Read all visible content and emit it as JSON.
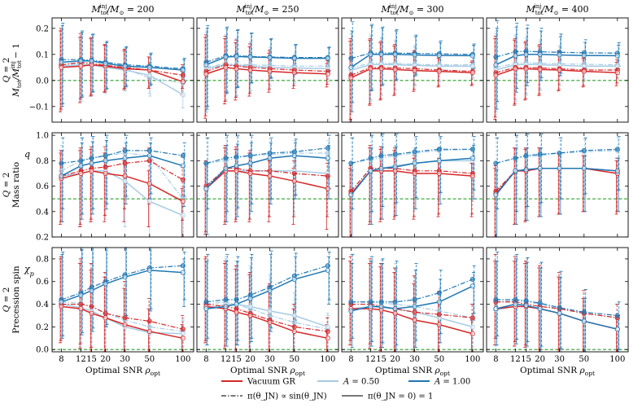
{
  "chart_data": {
    "type": "line",
    "x_values": [
      8,
      12,
      15,
      20,
      30,
      50,
      100
    ],
    "x_ticks": [
      "8",
      "12",
      "15",
      "20",
      "30",
      "50",
      "100"
    ],
    "xlabel": "Optimal SNR ρ_opt",
    "columns": [
      {
        "title": "M_tot^inj / M_⊙ = 200",
        "mass": 200
      },
      {
        "title": "M_tot^inj / M_⊙ = 250",
        "mass": 250
      },
      {
        "title": "M_tot^inj / M_⊙ = 300",
        "mass": 300
      },
      {
        "title": "M_tot^inj / M_⊙ = 400",
        "mass": 400
      }
    ],
    "rows": [
      {
        "key": "mass_bias",
        "ylabel_line1": "Q = 2",
        "ylabel_line2": "M_tot / M_tot^inj − 1",
        "ylim": [
          -0.16,
          0.24
        ],
        "yticks": [
          -0.1,
          0.0,
          0.1,
          0.2
        ],
        "ytick_labels": [
          "−0.1",
          "0.0",
          "0.1",
          "0.2"
        ],
        "reference": 0.0
      },
      {
        "key": "mass_ratio",
        "ylabel_line1": "Q = 2",
        "ylabel_line2": "Mass ratio",
        "inline_label": "q",
        "ylim": [
          0.2,
          1.02
        ],
        "yticks": [
          0.2,
          0.4,
          0.6,
          0.8,
          1.0
        ],
        "ytick_labels": [
          "0.2",
          "0.4",
          "0.6",
          "0.8",
          "1.0"
        ],
        "reference": 0.5
      },
      {
        "key": "precession_spin",
        "ylabel_line1": "Q = 2",
        "ylabel_line2": "Precession spin",
        "inline_label": "χ_p",
        "ylim": [
          -0.02,
          0.9
        ],
        "yticks": [
          0.0,
          0.2,
          0.4,
          0.6,
          0.8
        ],
        "ytick_labels": [
          "0.0",
          "0.2",
          "0.4",
          "0.6",
          "0.8"
        ],
        "reference": 0.0
      }
    ],
    "series_styles": [
      {
        "key": "vac",
        "label": "Vacuum GR",
        "color": "#d62728"
      },
      {
        "key": "a05",
        "label": "A = 0.50",
        "color": "#a6cbe3"
      },
      {
        "key": "a1",
        "label": "A = 1.00",
        "color": "#1f77b4"
      }
    ],
    "prior_styles": [
      {
        "key": "sin",
        "label": "π(θ_JN) ∝ sin(θ_JN)",
        "dash": "dashdot"
      },
      {
        "key": "fix",
        "label": "π(θ_JN = 0) = 1",
        "dash": "solid"
      }
    ],
    "reference_color": "#2ca02c",
    "data": [
      [
        {
          "vac_fix": [
            0.05,
            0.055,
            0.06,
            0.055,
            0.045,
            0.04,
            -0.005
          ],
          "vac_sin": [
            0.06,
            0.07,
            0.065,
            0.058,
            0.05,
            0.04,
            0.02
          ],
          "a05_fix": [
            0.055,
            0.06,
            0.06,
            0.05,
            0.04,
            0.02,
            -0.055
          ],
          "a05_sin": [
            0.06,
            0.065,
            0.062,
            0.055,
            0.045,
            0.01,
            -0.01
          ],
          "a1_fix": [
            0.07,
            0.075,
            0.075,
            0.065,
            0.055,
            0.05,
            0.04
          ],
          "a1_sin": [
            0.08,
            0.08,
            0.078,
            0.07,
            0.06,
            0.055,
            0.045
          ],
          "err_low": [
            0.17,
            0.14,
            0.12,
            0.1,
            0.08,
            0.07,
            0.05
          ],
          "err_high": [
            0.14,
            0.11,
            0.1,
            0.08,
            0.07,
            0.05,
            0.04
          ]
        },
        {
          "vac_fix": [
            0.025,
            0.05,
            0.045,
            0.04,
            0.035,
            0.03,
            0.025
          ],
          "vac_sin": [
            0.035,
            0.06,
            0.055,
            0.05,
            0.045,
            0.04,
            0.035
          ],
          "a05_fix": [
            0.045,
            0.06,
            0.058,
            0.055,
            0.05,
            0.048,
            0.045
          ],
          "a05_sin": [
            0.05,
            0.065,
            0.062,
            0.06,
            0.058,
            0.055,
            0.055
          ],
          "a1_fix": [
            0.06,
            0.09,
            0.092,
            0.09,
            0.088,
            0.085,
            0.085
          ],
          "a1_sin": [
            0.07,
            0.095,
            0.095,
            0.092,
            0.09,
            0.088,
            0.088
          ],
          "err_low": [
            0.17,
            0.14,
            0.12,
            0.1,
            0.08,
            0.06,
            0.05
          ],
          "err_high": [
            0.14,
            0.11,
            0.1,
            0.09,
            0.07,
            0.05,
            0.04
          ]
        },
        {
          "vac_fix": [
            0.01,
            0.045,
            0.045,
            0.042,
            0.038,
            0.035,
            0.03
          ],
          "vac_sin": [
            0.02,
            0.05,
            0.05,
            0.048,
            0.045,
            0.04,
            0.035
          ],
          "a05_fix": [
            0.04,
            0.06,
            0.062,
            0.06,
            0.058,
            0.055,
            0.055
          ],
          "a05_sin": [
            0.05,
            0.065,
            0.066,
            0.065,
            0.062,
            0.06,
            0.06
          ],
          "a1_fix": [
            0.05,
            0.1,
            0.1,
            0.1,
            0.098,
            0.096,
            0.095
          ],
          "a1_sin": [
            0.085,
            0.105,
            0.105,
            0.105,
            0.104,
            0.102,
            0.1
          ],
          "err_low": [
            0.17,
            0.14,
            0.12,
            0.1,
            0.08,
            0.06,
            0.05
          ],
          "err_high": [
            0.14,
            0.11,
            0.1,
            0.09,
            0.07,
            0.05,
            0.04
          ]
        },
        {
          "vac_fix": [
            0.02,
            0.045,
            0.045,
            0.042,
            0.04,
            0.035,
            0.03
          ],
          "vac_sin": [
            0.03,
            0.05,
            0.05,
            0.048,
            0.045,
            0.04,
            0.04
          ],
          "a05_fix": [
            0.04,
            0.06,
            0.062,
            0.06,
            0.058,
            0.055,
            0.055
          ],
          "a05_sin": [
            0.05,
            0.065,
            0.068,
            0.066,
            0.064,
            0.062,
            0.06
          ],
          "a1_fix": [
            0.06,
            0.095,
            0.1,
            0.1,
            0.098,
            0.096,
            0.095
          ],
          "a1_sin": [
            0.09,
            0.11,
            0.112,
            0.11,
            0.108,
            0.106,
            0.105
          ],
          "err_low": [
            0.17,
            0.14,
            0.12,
            0.1,
            0.08,
            0.06,
            0.05
          ],
          "err_high": [
            0.14,
            0.11,
            0.1,
            0.09,
            0.07,
            0.05,
            0.04
          ]
        }
      ],
      [
        {
          "vac_fix": [
            0.66,
            0.7,
            0.72,
            0.7,
            0.68,
            0.62,
            0.48
          ],
          "vac_sin": [
            0.68,
            0.72,
            0.74,
            0.75,
            0.78,
            0.8,
            0.65
          ],
          "a05_fix": [
            0.68,
            0.7,
            0.72,
            0.72,
            0.64,
            0.48,
            0.37
          ],
          "a05_sin": [
            0.72,
            0.8,
            0.82,
            0.84,
            0.86,
            0.84,
            0.5
          ],
          "a1_fix": [
            0.68,
            0.76,
            0.78,
            0.8,
            0.82,
            0.84,
            0.76
          ],
          "a1_sin": [
            0.78,
            0.8,
            0.82,
            0.84,
            0.88,
            0.88,
            0.84
          ],
          "err_low": [
            0.36,
            0.42,
            0.4,
            0.38,
            0.36,
            0.34,
            0.32
          ],
          "err_high": [
            0.2,
            0.18,
            0.17,
            0.16,
            0.12,
            0.1,
            0.1
          ]
        },
        {
          "vac_fix": [
            0.58,
            0.72,
            0.72,
            0.7,
            0.68,
            0.64,
            0.58
          ],
          "vac_sin": [
            0.6,
            0.74,
            0.74,
            0.72,
            0.72,
            0.7,
            0.68
          ],
          "a05_fix": [
            0.6,
            0.72,
            0.72,
            0.72,
            0.72,
            0.72,
            0.7
          ],
          "a05_sin": [
            0.78,
            0.8,
            0.82,
            0.84,
            0.85,
            0.86,
            0.86
          ],
          "a1_fix": [
            0.58,
            0.74,
            0.76,
            0.78,
            0.82,
            0.84,
            0.82
          ],
          "a1_sin": [
            0.78,
            0.82,
            0.83,
            0.84,
            0.86,
            0.87,
            0.9
          ],
          "err_low": [
            0.36,
            0.42,
            0.4,
            0.38,
            0.36,
            0.34,
            0.32
          ],
          "err_high": [
            0.2,
            0.18,
            0.17,
            0.16,
            0.12,
            0.1,
            0.1
          ]
        },
        {
          "vac_fix": [
            0.54,
            0.72,
            0.72,
            0.72,
            0.7,
            0.7,
            0.68
          ],
          "vac_sin": [
            0.56,
            0.74,
            0.74,
            0.74,
            0.72,
            0.72,
            0.7
          ],
          "a05_fix": [
            0.54,
            0.72,
            0.74,
            0.76,
            0.78,
            0.8,
            0.8
          ],
          "a05_sin": [
            0.78,
            0.81,
            0.82,
            0.84,
            0.86,
            0.88,
            0.89
          ],
          "a1_fix": [
            0.53,
            0.72,
            0.74,
            0.75,
            0.78,
            0.8,
            0.82
          ],
          "a1_sin": [
            0.78,
            0.82,
            0.84,
            0.85,
            0.87,
            0.89,
            0.89
          ],
          "err_low": [
            0.36,
            0.42,
            0.4,
            0.38,
            0.36,
            0.34,
            0.32
          ],
          "err_high": [
            0.2,
            0.18,
            0.17,
            0.16,
            0.12,
            0.1,
            0.1
          ]
        },
        {
          "vac_fix": [
            0.54,
            0.72,
            0.72,
            0.74,
            0.74,
            0.74,
            0.7
          ],
          "vac_sin": [
            0.56,
            0.72,
            0.73,
            0.74,
            0.74,
            0.74,
            0.72
          ],
          "a05_fix": [
            0.54,
            0.72,
            0.73,
            0.74,
            0.74,
            0.74,
            0.72
          ],
          "a05_sin": [
            0.78,
            0.82,
            0.83,
            0.84,
            0.86,
            0.87,
            0.88
          ],
          "a1_fix": [
            0.53,
            0.72,
            0.73,
            0.74,
            0.74,
            0.74,
            0.72
          ],
          "a1_sin": [
            0.78,
            0.82,
            0.84,
            0.85,
            0.86,
            0.88,
            0.89
          ],
          "err_low": [
            0.36,
            0.42,
            0.4,
            0.38,
            0.36,
            0.34,
            0.32
          ],
          "err_high": [
            0.2,
            0.18,
            0.17,
            0.16,
            0.12,
            0.1,
            0.1
          ]
        }
      ],
      [
        {
          "vac_fix": [
            0.38,
            0.36,
            0.32,
            0.28,
            0.22,
            0.16,
            0.1
          ],
          "vac_sin": [
            0.4,
            0.4,
            0.38,
            0.32,
            0.28,
            0.25,
            0.18
          ],
          "a05_fix": [
            0.4,
            0.37,
            0.34,
            0.28,
            0.2,
            0.15,
            0.14
          ],
          "a05_sin": [
            0.42,
            0.41,
            0.38,
            0.32,
            0.26,
            0.2,
            0.16
          ],
          "a1_fix": [
            0.42,
            0.48,
            0.52,
            0.58,
            0.64,
            0.7,
            0.68
          ],
          "a1_sin": [
            0.44,
            0.5,
            0.55,
            0.6,
            0.66,
            0.72,
            0.74
          ],
          "err_low": [
            0.32,
            0.35,
            0.36,
            0.38,
            0.36,
            0.36,
            0.3
          ],
          "err_high": [
            0.42,
            0.4,
            0.38,
            0.36,
            0.32,
            0.2,
            0.12
          ]
        },
        {
          "vac_fix": [
            0.38,
            0.36,
            0.33,
            0.3,
            0.24,
            0.16,
            0.1
          ],
          "vac_sin": [
            0.4,
            0.38,
            0.36,
            0.32,
            0.26,
            0.2,
            0.16
          ],
          "a05_fix": [
            0.36,
            0.4,
            0.4,
            0.38,
            0.34,
            0.3,
            0.2
          ],
          "a05_sin": [
            0.4,
            0.42,
            0.4,
            0.36,
            0.3,
            0.24,
            0.18
          ],
          "a1_fix": [
            0.36,
            0.38,
            0.4,
            0.45,
            0.52,
            0.62,
            0.7
          ],
          "a1_sin": [
            0.42,
            0.44,
            0.44,
            0.48,
            0.55,
            0.65,
            0.74
          ],
          "err_low": [
            0.32,
            0.35,
            0.36,
            0.38,
            0.36,
            0.36,
            0.3
          ],
          "err_high": [
            0.42,
            0.4,
            0.38,
            0.36,
            0.32,
            0.2,
            0.12
          ]
        },
        {
          "vac_fix": [
            0.36,
            0.36,
            0.35,
            0.32,
            0.26,
            0.22,
            0.14
          ],
          "vac_sin": [
            0.4,
            0.4,
            0.38,
            0.36,
            0.33,
            0.31,
            0.28
          ],
          "a05_fix": [
            0.36,
            0.38,
            0.37,
            0.36,
            0.33,
            0.28,
            0.2
          ],
          "a05_sin": [
            0.42,
            0.42,
            0.41,
            0.4,
            0.38,
            0.34,
            0.28
          ],
          "a1_fix": [
            0.34,
            0.38,
            0.38,
            0.36,
            0.38,
            0.42,
            0.56
          ],
          "a1_sin": [
            0.42,
            0.42,
            0.42,
            0.42,
            0.44,
            0.5,
            0.62
          ],
          "err_low": [
            0.32,
            0.35,
            0.36,
            0.38,
            0.36,
            0.36,
            0.3
          ],
          "err_high": [
            0.42,
            0.4,
            0.38,
            0.36,
            0.32,
            0.2,
            0.12
          ]
        },
        {
          "vac_fix": [
            0.36,
            0.38,
            0.38,
            0.36,
            0.32,
            0.25,
            0.18
          ],
          "vac_sin": [
            0.42,
            0.42,
            0.4,
            0.38,
            0.36,
            0.32,
            0.28
          ],
          "a05_fix": [
            0.35,
            0.38,
            0.38,
            0.36,
            0.32,
            0.25,
            0.18
          ],
          "a05_sin": [
            0.42,
            0.43,
            0.42,
            0.4,
            0.36,
            0.32,
            0.28
          ],
          "a1_fix": [
            0.36,
            0.4,
            0.39,
            0.36,
            0.32,
            0.25,
            0.18
          ],
          "a1_sin": [
            0.44,
            0.44,
            0.43,
            0.41,
            0.37,
            0.33,
            0.3
          ],
          "err_low": [
            0.32,
            0.35,
            0.36,
            0.38,
            0.36,
            0.36,
            0.3
          ],
          "err_high": [
            0.42,
            0.4,
            0.38,
            0.36,
            0.32,
            0.2,
            0.12
          ]
        }
      ]
    ]
  }
}
